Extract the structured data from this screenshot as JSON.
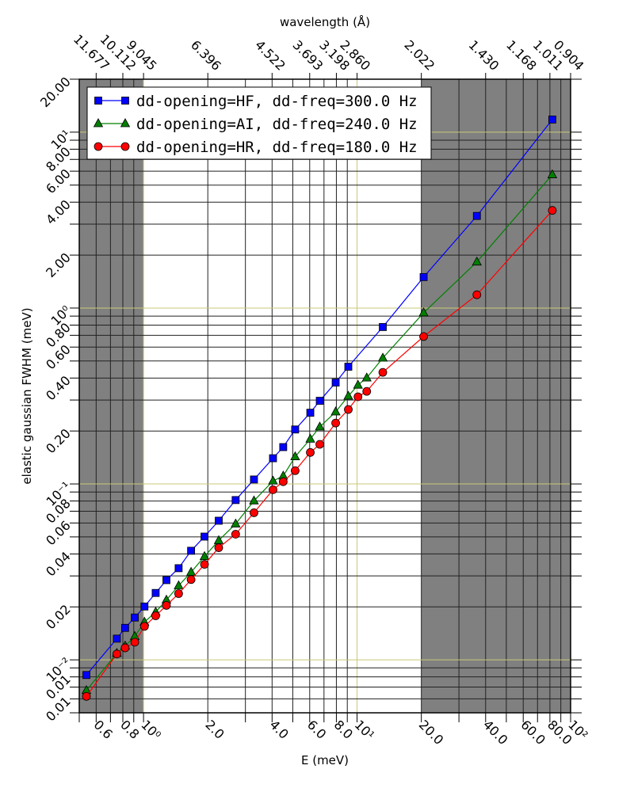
{
  "chart_data": {
    "type": "line",
    "title": "",
    "xlabel": "E (meV)",
    "ylabel": "elastic gaussian FWHM (meV)",
    "x_scale": "log",
    "y_scale": "log",
    "xlim": [
      0.5,
      100
    ],
    "ylim": [
      0.005,
      20
    ],
    "grid": true,
    "legend_position": "top-left",
    "shaded_x_ranges": [
      [
        0.5,
        1.0
      ],
      [
        20,
        100
      ]
    ],
    "colors": {
      "shade": "#808080",
      "major_grid": "#c8c878",
      "minor_grid": "#222222"
    },
    "x_ticks": [
      {
        "value": 0.6,
        "label": "0.6"
      },
      {
        "value": 0.8,
        "label": "0.8"
      },
      {
        "value": 1,
        "label": "10⁰"
      },
      {
        "value": 2,
        "label": "2.0"
      },
      {
        "value": 4,
        "label": "4.0"
      },
      {
        "value": 6,
        "label": "6.0"
      },
      {
        "value": 8,
        "label": "8.0"
      },
      {
        "value": 10,
        "label": "10¹"
      },
      {
        "value": 20,
        "label": "20.0"
      },
      {
        "value": 40,
        "label": "40.0"
      },
      {
        "value": 60,
        "label": "60.0"
      },
      {
        "value": 80,
        "label": "80.0"
      },
      {
        "value": 100,
        "label": "10²"
      }
    ],
    "y_ticks": [
      {
        "value": 0.006,
        "label": "0.01"
      },
      {
        "value": 0.008,
        "label": "0.01"
      },
      {
        "value": 0.01,
        "label": "10⁻²"
      },
      {
        "value": 0.02,
        "label": "0.02"
      },
      {
        "value": 0.04,
        "label": "0.04"
      },
      {
        "value": 0.06,
        "label": "0.06"
      },
      {
        "value": 0.08,
        "label": "0.08"
      },
      {
        "value": 0.1,
        "label": "10⁻¹"
      },
      {
        "value": 0.2,
        "label": "0.20"
      },
      {
        "value": 0.4,
        "label": "0.40"
      },
      {
        "value": 0.6,
        "label": "0.60"
      },
      {
        "value": 0.8,
        "label": "0.80"
      },
      {
        "value": 1,
        "label": "10⁰"
      },
      {
        "value": 2,
        "label": "2.00"
      },
      {
        "value": 4,
        "label": "4.00"
      },
      {
        "value": 6,
        "label": "6.00"
      },
      {
        "value": 8,
        "label": "8.00"
      },
      {
        "value": 10,
        "label": "10¹"
      },
      {
        "value": 20,
        "label": "20.00"
      }
    ],
    "top_axis": {
      "label": "wavelength (Å)",
      "ticks": [
        {
          "E": 0.6,
          "label": "11.677"
        },
        {
          "E": 0.8,
          "label": "10.112"
        },
        {
          "E": 1.0,
          "label": "9.045"
        },
        {
          "E": 2.0,
          "label": "6.396"
        },
        {
          "E": 4.0,
          "label": "4.522"
        },
        {
          "E": 6.0,
          "label": "3.693"
        },
        {
          "E": 8.0,
          "label": "3.198"
        },
        {
          "E": 10.0,
          "label": "2.860"
        },
        {
          "E": 20.0,
          "label": "2.022"
        },
        {
          "E": 40.0,
          "label": "1.430"
        },
        {
          "E": 60.0,
          "label": "1.168"
        },
        {
          "E": 80.0,
          "label": "1.011"
        },
        {
          "E": 100.0,
          "label": "0.904"
        }
      ]
    },
    "series": [
      {
        "name": "dd-opening=HF, dd-freq=300.0 Hz",
        "color": "#0000ff",
        "marker": "square",
        "x": [
          0.54,
          0.75,
          0.82,
          0.91,
          1.01,
          1.14,
          1.28,
          1.46,
          1.67,
          1.93,
          2.25,
          2.7,
          3.29,
          4.04,
          4.51,
          5.13,
          6.04,
          6.69,
          7.94,
          9.1,
          13.2,
          20.5,
          36.4,
          82.1
        ],
        "y": [
          0.0082,
          0.0132,
          0.0152,
          0.0174,
          0.0201,
          0.024,
          0.0284,
          0.0332,
          0.0417,
          0.0502,
          0.0618,
          0.081,
          0.106,
          0.14,
          0.162,
          0.204,
          0.254,
          0.297,
          0.377,
          0.464,
          0.78,
          1.5,
          3.34,
          11.8
        ]
      },
      {
        "name": "dd-opening=AI, dd-freq=240.0 Hz",
        "color": "#008000",
        "marker": "triangle",
        "x": [
          0.54,
          0.75,
          0.82,
          0.91,
          1.01,
          1.14,
          1.28,
          1.46,
          1.67,
          1.93,
          2.25,
          2.7,
          3.29,
          4.04,
          4.51,
          5.13,
          6.04,
          6.69,
          7.94,
          9.1,
          10.1,
          11.1,
          13.2,
          20.5,
          36.4,
          82.1
        ],
        "y": [
          0.0067,
          0.0109,
          0.012,
          0.0136,
          0.0164,
          0.0187,
          0.0219,
          0.0264,
          0.0315,
          0.0387,
          0.0477,
          0.0593,
          0.0802,
          0.104,
          0.111,
          0.143,
          0.18,
          0.211,
          0.257,
          0.316,
          0.365,
          0.401,
          0.52,
          0.94,
          1.83,
          5.73
        ]
      },
      {
        "name": "dd-opening=HR, dd-freq=180.0 Hz",
        "color": "#ff0000",
        "marker": "circle",
        "x": [
          0.54,
          0.75,
          0.82,
          0.91,
          1.01,
          1.14,
          1.28,
          1.46,
          1.67,
          1.93,
          2.25,
          2.7,
          3.29,
          4.04,
          4.51,
          5.13,
          6.04,
          6.69,
          7.94,
          9.1,
          10.1,
          11.1,
          13.2,
          20.5,
          36.4,
          82.1
        ],
        "y": [
          0.0062,
          0.0108,
          0.0117,
          0.0126,
          0.0155,
          0.0178,
          0.0204,
          0.0238,
          0.0286,
          0.0349,
          0.0434,
          0.0518,
          0.0686,
          0.0927,
          0.103,
          0.119,
          0.151,
          0.168,
          0.222,
          0.265,
          0.313,
          0.336,
          0.431,
          0.689,
          1.19,
          3.59
        ]
      }
    ]
  }
}
